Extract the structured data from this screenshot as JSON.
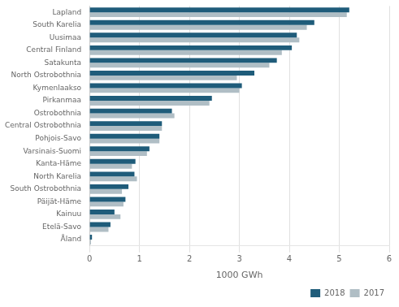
{
  "chart_data": {
    "type": "bar",
    "orientation": "horizontal",
    "xlabel": "1000 GWh",
    "categories": [
      "Lapland",
      "South Karelia",
      "Uusimaa",
      "Central Finland",
      "Satakunta",
      "North Ostrobothnia",
      "Kymenlaakso",
      "Pirkanmaa",
      "Ostrobothnia",
      "Central Ostrobothnia",
      "Pohjois-Savo",
      "Varsinais-Suomi",
      "Kanta-Häme",
      "North Karelia",
      "South Ostrobothnia",
      "Päijät-Häme",
      "Kainuu",
      "Etelä-Savo",
      "Åland"
    ],
    "series": [
      {
        "name": "2018",
        "color": "#1f5c7a",
        "values": [
          5.2,
          4.5,
          4.15,
          4.05,
          3.75,
          3.3,
          3.05,
          2.45,
          1.65,
          1.45,
          1.4,
          1.2,
          0.92,
          0.9,
          0.78,
          0.72,
          0.5,
          0.42,
          0.05
        ]
      },
      {
        "name": "2017",
        "color": "#b0bec5",
        "values": [
          5.15,
          4.35,
          4.2,
          3.85,
          3.6,
          2.95,
          3.0,
          2.4,
          1.7,
          1.45,
          1.4,
          1.15,
          0.85,
          0.95,
          0.65,
          0.68,
          0.62,
          0.38,
          0.03
        ]
      }
    ],
    "xlim": [
      0,
      6
    ],
    "xticks": [
      0,
      1,
      2,
      3,
      4,
      5,
      6
    ],
    "grid": true,
    "legend": "lower right"
  }
}
